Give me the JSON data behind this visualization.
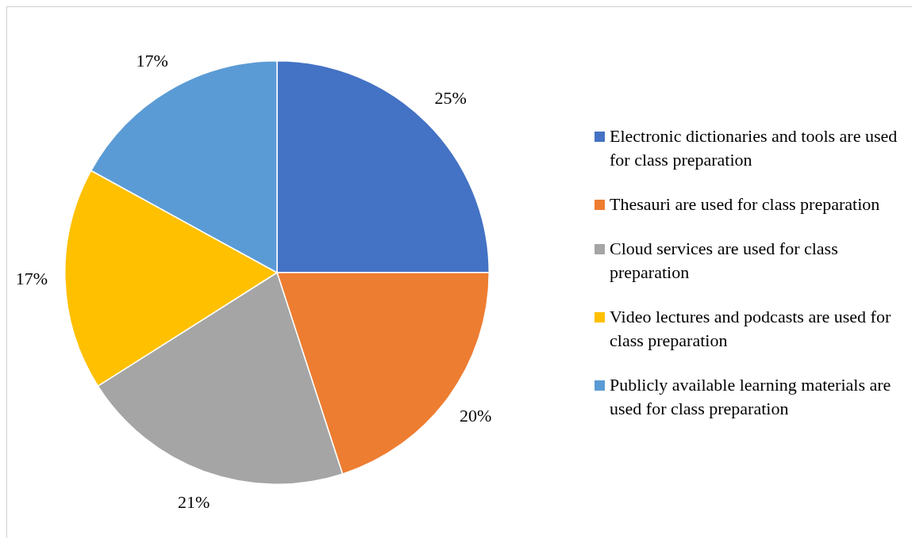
{
  "chart_data": {
    "type": "pie",
    "categories": [
      "Electronic dictionaries and tools are used for class preparation",
      "Thesauri are used for class preparation",
      "Cloud services are used for class preparation",
      "Video lectures and podcasts are used for class preparation",
      "Publicly available learning materials are used for class preparation"
    ],
    "values": [
      25,
      20,
      21,
      17,
      17
    ],
    "colors": [
      "#4472c4",
      "#ed7d31",
      "#a5a5a5",
      "#ffc000",
      "#5b9bd5"
    ],
    "value_labels": [
      "25%",
      "20%",
      "21%",
      "17%",
      "17%"
    ],
    "legend": "right"
  }
}
